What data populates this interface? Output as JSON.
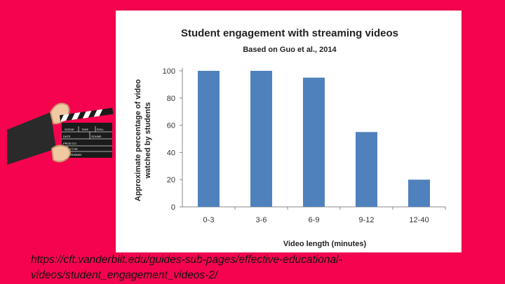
{
  "caption": {
    "line1": "https://cft.vanderbilt.edu/guides-sub-pages/effective-educational-",
    "line2": "videos/student_engagement_videos-2/"
  },
  "clapperboard": {
    "labels": [
      "SCENE",
      "TAKE",
      "ROLL",
      "DATE",
      "SOUND",
      "PROD.CO.",
      "DIRECTOR",
      "CAMERAMAN"
    ]
  },
  "chart_data": {
    "type": "bar",
    "title": "Student engagement with streaming videos",
    "subtitle": "Based on Guo et al., 2014",
    "xlabel": "Video length (minutes)",
    "ylabel_lines": [
      "Approximate percentage of video",
      "watched by students"
    ],
    "categories": [
      "0-3",
      "3-6",
      "6-9",
      "9-12",
      "12-40"
    ],
    "values": [
      100,
      100,
      95,
      55,
      20
    ],
    "ylim": [
      0,
      100
    ],
    "yticks": [
      0,
      20,
      40,
      60,
      80,
      100
    ],
    "bar_color": "#4f81bd",
    "grid": false,
    "legend": "none"
  }
}
